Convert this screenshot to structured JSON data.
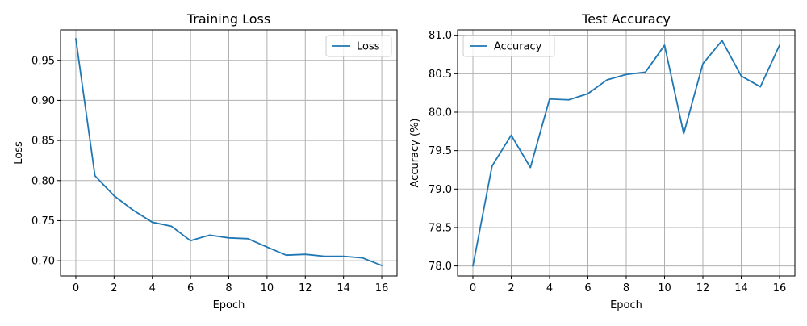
{
  "chart_data": [
    {
      "type": "line",
      "title": "Training Loss",
      "xlabel": "Epoch",
      "ylabel": "Loss",
      "xlim": [
        -0.8,
        16.8
      ],
      "ylim": [
        0.681,
        0.988
      ],
      "xticks": [
        0,
        2,
        4,
        6,
        8,
        10,
        12,
        14,
        16
      ],
      "yticks": [
        0.7,
        0.75,
        0.8,
        0.85,
        0.9,
        0.95
      ],
      "ytick_labels": [
        "0.70",
        "0.75",
        "0.80",
        "0.85",
        "0.90",
        "0.95"
      ],
      "grid": true,
      "legend": "top-right",
      "series": [
        {
          "name": "Loss",
          "color": "#1f77b4",
          "x": [
            0,
            1,
            2,
            3,
            4,
            5,
            6,
            7,
            8,
            9,
            10,
            11,
            12,
            13,
            14,
            15,
            16
          ],
          "values": [
            0.977,
            0.806,
            0.781,
            0.763,
            0.748,
            0.743,
            0.725,
            0.732,
            0.7285,
            0.7275,
            0.717,
            0.707,
            0.708,
            0.7055,
            0.7055,
            0.7035,
            0.694
          ]
        }
      ]
    },
    {
      "type": "line",
      "title": "Test Accuracy",
      "xlabel": "Epoch",
      "ylabel": "Accuracy (%)",
      "xlim": [
        -0.8,
        16.8
      ],
      "ylim": [
        77.87,
        81.07
      ],
      "xticks": [
        0,
        2,
        4,
        6,
        8,
        10,
        12,
        14,
        16
      ],
      "yticks": [
        78.0,
        78.5,
        79.0,
        79.5,
        80.0,
        80.5,
        81.0
      ],
      "ytick_labels": [
        "78.0",
        "78.5",
        "79.0",
        "79.5",
        "80.0",
        "80.5",
        "81.0"
      ],
      "grid": true,
      "legend": "top-left",
      "series": [
        {
          "name": "Accuracy",
          "color": "#1f77b4",
          "x": [
            0,
            1,
            2,
            3,
            4,
            5,
            6,
            7,
            8,
            9,
            10,
            11,
            12,
            13,
            14,
            15,
            16
          ],
          "values": [
            78.0,
            79.3,
            79.7,
            79.28,
            80.17,
            80.16,
            80.24,
            80.42,
            80.49,
            80.52,
            80.87,
            79.72,
            80.63,
            80.93,
            80.47,
            80.33,
            80.87
          ]
        }
      ]
    }
  ]
}
